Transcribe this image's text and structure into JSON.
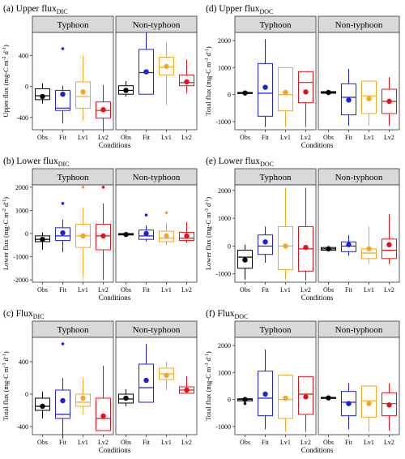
{
  "colors": {
    "Obs": "#000000",
    "Fit": "#1f1fe0",
    "Lv1": "#f5a623",
    "Lv2": "#e8101a"
  },
  "categories": [
    "Obs",
    "Fit",
    "Lv1",
    "Lv2"
  ],
  "facets": [
    "Typhoon",
    "Non-typhoon"
  ],
  "xlabel": "Conditions",
  "chart_data": [
    {
      "type": "box",
      "title_main": "(a) Upper flux",
      "title_sub": "DIC",
      "ylabel": "Upper flux (mg-C m",
      "ylabel_sup1": "-2",
      "ylabel_mid": " d",
      "ylabel_sup2": "-1",
      "ylabel_end": ")",
      "ylim": [
        -560,
        700
      ],
      "yticks": [
        -400,
        0,
        400
      ],
      "facets": [
        {
          "name": "Typhoon",
          "boxes": [
            {
              "cat": "Obs",
              "lw": -220,
              "q1": -170,
              "med": -120,
              "q3": -30,
              "uw": 40,
              "mean": -130,
              "out": []
            },
            {
              "cat": "Fit",
              "lw": -480,
              "q1": -310,
              "med": -280,
              "q3": -50,
              "uw": 10,
              "mean": -100,
              "out": [
                490
              ]
            },
            {
              "cat": "Lv1",
              "lw": -450,
              "q1": -280,
              "med": -130,
              "q3": 60,
              "uw": 400,
              "mean": -70,
              "out": []
            },
            {
              "cat": "Lv2",
              "lw": -560,
              "q1": -410,
              "med": -310,
              "q3": -200,
              "uw": 20,
              "mean": -300,
              "out": []
            }
          ]
        },
        {
          "name": "Non-typhoon",
          "boxes": [
            {
              "cat": "Obs",
              "lw": -130,
              "q1": -100,
              "med": -50,
              "q3": 10,
              "uw": 70,
              "mean": -50,
              "out": []
            },
            {
              "cat": "Fit",
              "lw": -100,
              "q1": -100,
              "med": 180,
              "q3": 480,
              "uw": 700,
              "mean": 190,
              "out": []
            },
            {
              "cat": "Lv1",
              "lw": -240,
              "q1": 150,
              "med": 250,
              "q3": 380,
              "uw": 580,
              "mean": 260,
              "out": []
            },
            {
              "cat": "Lv2",
              "lw": -90,
              "q1": 10,
              "med": 50,
              "q3": 150,
              "uw": 350,
              "mean": 60,
              "out": []
            }
          ]
        }
      ]
    },
    {
      "type": "box",
      "title_main": "(d) Upper flux",
      "title_sub": "DOC",
      "ylabel": "Total flux (mg-C m",
      "ylabel_sup1": "-3",
      "ylabel_mid": " d",
      "ylabel_sup2": "-1",
      "ylabel_end": ")",
      "ylim": [
        -1300,
        2300
      ],
      "yticks": [
        -1000,
        0,
        1000,
        2000
      ],
      "facets": [
        {
          "name": "Typhoon",
          "boxes": [
            {
              "cat": "Obs",
              "lw": 20,
              "q1": 40,
              "med": 60,
              "q3": 80,
              "uw": 100,
              "mean": 60,
              "out": []
            },
            {
              "cat": "Fit",
              "lw": -1200,
              "q1": -800,
              "med": 50,
              "q3": 1150,
              "uw": 2050,
              "mean": 270,
              "out": []
            },
            {
              "cat": "Lv1",
              "lw": -1200,
              "q1": -600,
              "med": 0,
              "q3": 1000,
              "uw": 1000,
              "mean": 80,
              "out": []
            },
            {
              "cat": "Lv2",
              "lw": -1200,
              "q1": -300,
              "med": 450,
              "q3": 850,
              "uw": 850,
              "mean": 100,
              "out": []
            }
          ]
        },
        {
          "name": "Non-typhoon",
          "boxes": [
            {
              "cat": "Obs",
              "lw": 30,
              "q1": 50,
              "med": 80,
              "q3": 110,
              "uw": 140,
              "mean": 80,
              "out": []
            },
            {
              "cat": "Fit",
              "lw": -1150,
              "q1": -750,
              "med": -100,
              "q3": 400,
              "uw": 950,
              "mean": -200,
              "out": []
            },
            {
              "cat": "Lv1",
              "lw": -1150,
              "q1": -700,
              "med": -50,
              "q3": 500,
              "uw": 500,
              "mean": -150,
              "out": []
            },
            {
              "cat": "Lv2",
              "lw": -1150,
              "q1": -700,
              "med": -250,
              "q3": 200,
              "uw": 650,
              "mean": -250,
              "out": []
            }
          ]
        }
      ]
    },
    {
      "type": "box",
      "title_main": "(b) Lower flux",
      "title_sub": "DIC",
      "ylabel": "Lower flux (mg-C m",
      "ylabel_sup1": "-2",
      "ylabel_mid": " d",
      "ylabel_sup2": "-1",
      "ylabel_end": ")",
      "ylim": [
        -2100,
        2100
      ],
      "yticks": [
        -2000,
        -1000,
        0,
        1000,
        2000
      ],
      "facets": [
        {
          "name": "Typhoon",
          "boxes": [
            {
              "cat": "Obs",
              "lw": -700,
              "q1": -350,
              "med": -250,
              "q3": -100,
              "uw": 50,
              "mean": -250,
              "out": []
            },
            {
              "cat": "Fit",
              "lw": -800,
              "q1": -300,
              "med": -100,
              "q3": 250,
              "uw": 600,
              "mean": 30,
              "out": [
                1300
              ]
            },
            {
              "cat": "Lv1",
              "lw": -1900,
              "q1": -600,
              "med": -100,
              "q3": 400,
              "uw": 1100,
              "mean": -100,
              "out": [
                2000
              ]
            },
            {
              "cat": "Lv2",
              "lw": -2000,
              "q1": -700,
              "med": -100,
              "q3": 400,
              "uw": 1300,
              "mean": -100,
              "out": [
                2000
              ]
            }
          ]
        },
        {
          "name": "Non-typhoon",
          "boxes": [
            {
              "cat": "Obs",
              "lw": -100,
              "q1": -60,
              "med": -30,
              "q3": 0,
              "uw": 30,
              "mean": -40,
              "out": []
            },
            {
              "cat": "Fit",
              "lw": -350,
              "q1": -250,
              "med": -100,
              "q3": 150,
              "uw": 350,
              "mean": 0,
              "out": [
                800
              ]
            },
            {
              "cat": "Lv1",
              "lw": -500,
              "q1": -350,
              "med": -200,
              "q3": 100,
              "uw": 450,
              "mean": -100,
              "out": [
                900
              ]
            },
            {
              "cat": "Lv2",
              "lw": -400,
              "q1": -300,
              "med": -200,
              "q3": 50,
              "uw": 500,
              "mean": -100,
              "out": []
            }
          ]
        }
      ]
    },
    {
      "type": "box",
      "title_main": "(e) Lower flux",
      "title_sub": "DOC",
      "ylabel": "Lower flux (mg-C m",
      "ylabel_sup1": "-3",
      "ylabel_mid": " d",
      "ylabel_sup2": "-1",
      "ylabel_end": ")",
      "ylim": [
        -1300,
        2200
      ],
      "yticks": [
        -1000,
        0,
        1000,
        2000
      ],
      "facets": [
        {
          "name": "Typhoon",
          "boxes": [
            {
              "cat": "Obs",
              "lw": -1200,
              "q1": -800,
              "med": -400,
              "q3": -150,
              "uw": 50,
              "mean": -500,
              "out": []
            },
            {
              "cat": "Fit",
              "lw": -600,
              "q1": -300,
              "med": 0,
              "q3": 400,
              "uw": 700,
              "mean": 150,
              "out": []
            },
            {
              "cat": "Lv1",
              "lw": -1200,
              "q1": -850,
              "med": 0,
              "q3": 700,
              "uw": 2100,
              "mean": 0,
              "out": []
            },
            {
              "cat": "Lv2",
              "lw": -1250,
              "q1": -900,
              "med": -100,
              "q3": 700,
              "uw": 2100,
              "mean": -50,
              "out": []
            }
          ]
        },
        {
          "name": "Non-typhoon",
          "boxes": [
            {
              "cat": "Obs",
              "lw": -200,
              "q1": -150,
              "med": -100,
              "q3": -50,
              "uw": 0,
              "mean": -100,
              "out": []
            },
            {
              "cat": "Fit",
              "lw": -350,
              "q1": -200,
              "med": 0,
              "q3": 150,
              "uw": 400,
              "mean": 50,
              "out": []
            },
            {
              "cat": "Lv1",
              "lw": -650,
              "q1": -450,
              "med": -250,
              "q3": -100,
              "uw": 700,
              "mean": -100,
              "out": []
            },
            {
              "cat": "Lv2",
              "lw": -650,
              "q1": -450,
              "med": -150,
              "q3": 250,
              "uw": 1150,
              "mean": 50,
              "out": []
            }
          ]
        }
      ]
    },
    {
      "type": "box",
      "title_main": "(c) Flux",
      "title_sub": "DIC",
      "ylabel": "Total flux (mg-C m",
      "ylabel_sup1": "-3",
      "ylabel_mid": " d",
      "ylabel_sup2": "-1",
      "ylabel_end": ")",
      "ylim": [
        -500,
        700
      ],
      "yticks": [
        -400,
        0,
        400
      ],
      "facets": [
        {
          "name": "Typhoon",
          "boxes": [
            {
              "cat": "Obs",
              "lw": -300,
              "q1": -200,
              "med": -150,
              "q3": -50,
              "uw": 30,
              "mean": -150,
              "out": []
            },
            {
              "cat": "Fit",
              "lw": -550,
              "q1": -300,
              "med": -250,
              "q3": 50,
              "uw": 200,
              "mean": -80,
              "out": [
                620
              ]
            },
            {
              "cat": "Lv1",
              "lw": -250,
              "q1": -150,
              "med": -100,
              "q3": 0,
              "uw": 200,
              "mean": -50,
              "out": []
            },
            {
              "cat": "Lv2",
              "lw": -450,
              "q1": -450,
              "med": -300,
              "q3": -50,
              "uw": 350,
              "mean": -270,
              "out": []
            }
          ]
        },
        {
          "name": "Non-typhoon",
          "boxes": [
            {
              "cat": "Obs",
              "lw": -150,
              "q1": -110,
              "med": -60,
              "q3": 0,
              "uw": 60,
              "mean": -50,
              "out": []
            },
            {
              "cat": "Fit",
              "lw": -100,
              "q1": -100,
              "med": 80,
              "q3": 370,
              "uw": 620,
              "mean": 170,
              "out": []
            },
            {
              "cat": "Lv1",
              "lw": 50,
              "q1": 180,
              "med": 250,
              "q3": 320,
              "uw": 400,
              "mean": 230,
              "out": []
            },
            {
              "cat": "Lv2",
              "lw": 10,
              "q1": 10,
              "med": 50,
              "q3": 90,
              "uw": 220,
              "mean": 50,
              "out": []
            }
          ]
        }
      ]
    },
    {
      "type": "box",
      "title_main": "(f) Flux",
      "title_sub": "DOC",
      "ylabel": "Total flux (mg-C m",
      "ylabel_sup1": "-3",
      "ylabel_mid": " d",
      "ylabel_sup2": "-1",
      "ylabel_end": ")",
      "ylim": [
        -1300,
        2300
      ],
      "yticks": [
        -1000,
        0,
        1000,
        2000
      ],
      "facets": [
        {
          "name": "Typhoon",
          "boxes": [
            {
              "cat": "Obs",
              "lw": -100,
              "q1": -50,
              "med": 0,
              "q3": 30,
              "uw": 60,
              "mean": 0,
              "out": [
                -150
              ]
            },
            {
              "cat": "Fit",
              "lw": -1100,
              "q1": -600,
              "med": 50,
              "q3": 1050,
              "uw": 1850,
              "mean": 200,
              "out": []
            },
            {
              "cat": "Lv1",
              "lw": -1200,
              "q1": -700,
              "med": 0,
              "q3": 900,
              "uw": 900,
              "mean": 50,
              "out": []
            },
            {
              "cat": "Lv2",
              "lw": -1200,
              "q1": -550,
              "med": 200,
              "q3": 850,
              "uw": 850,
              "mean": 100,
              "out": []
            }
          ]
        },
        {
          "name": "Non-typhoon",
          "boxes": [
            {
              "cat": "Obs",
              "lw": 20,
              "q1": 40,
              "med": 60,
              "q3": 80,
              "uw": 100,
              "mean": 60,
              "out": []
            },
            {
              "cat": "Fit",
              "lw": -1100,
              "q1": -600,
              "med": -100,
              "q3": 300,
              "uw": 600,
              "mean": -150,
              "out": []
            },
            {
              "cat": "Lv1",
              "lw": -1200,
              "q1": -650,
              "med": -50,
              "q3": 500,
              "uw": 500,
              "mean": -150,
              "out": []
            },
            {
              "cat": "Lv2",
              "lw": -1150,
              "q1": -600,
              "med": -150,
              "q3": 250,
              "uw": 600,
              "mean": -200,
              "out": []
            }
          ]
        }
      ]
    }
  ]
}
